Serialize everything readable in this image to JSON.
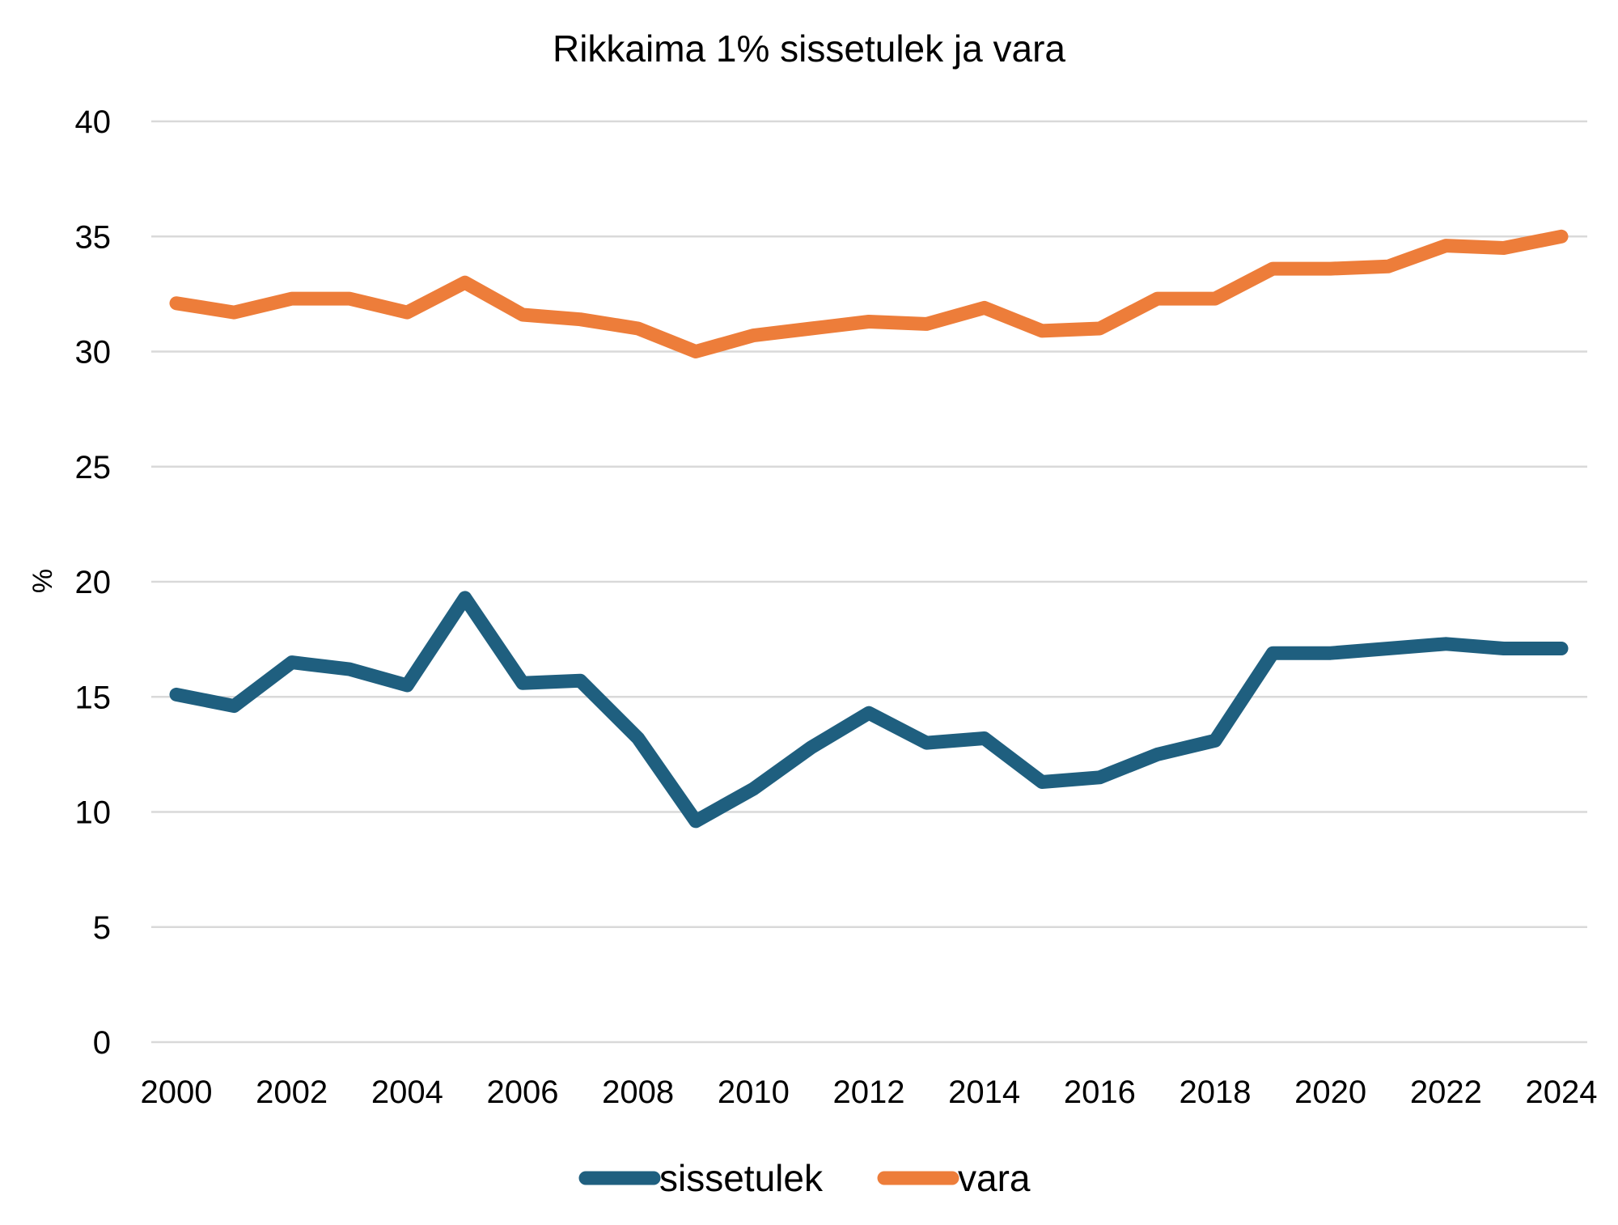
{
  "chart_data": {
    "type": "line",
    "title": "Rikkaima 1% sissetulek ja vara",
    "ylabel": "%",
    "xlabel": "",
    "ylim": [
      0,
      40
    ],
    "yticks": [
      0,
      5,
      10,
      15,
      20,
      25,
      30,
      35,
      40
    ],
    "xticks": [
      2000,
      2002,
      2004,
      2006,
      2008,
      2010,
      2012,
      2014,
      2016,
      2018,
      2020,
      2022,
      2024
    ],
    "x": [
      2000,
      2001,
      2002,
      2003,
      2004,
      2005,
      2006,
      2007,
      2008,
      2009,
      2010,
      2011,
      2012,
      2013,
      2014,
      2015,
      2016,
      2017,
      2018,
      2019,
      2020,
      2021,
      2022,
      2023,
      2024
    ],
    "grid": true,
    "legend_position": "bottom",
    "series": [
      {
        "name": "sissetulek",
        "color": "#1f5f7f",
        "values": [
          15.1,
          14.6,
          16.5,
          16.2,
          15.5,
          19.3,
          15.6,
          15.7,
          13.2,
          9.6,
          11.0,
          12.8,
          14.3,
          13.0,
          13.2,
          11.3,
          11.5,
          12.5,
          13.1,
          16.9,
          16.9,
          17.1,
          17.3,
          17.1,
          17.1
        ]
      },
      {
        "name": "vara",
        "color": "#ed7d3a",
        "values": [
          32.1,
          31.7,
          32.3,
          32.3,
          31.7,
          33.0,
          31.6,
          31.4,
          31.0,
          30.0,
          30.7,
          31.0,
          31.3,
          31.2,
          31.9,
          30.9,
          31.0,
          32.3,
          32.3,
          33.6,
          33.6,
          33.7,
          34.6,
          34.5,
          35.0
        ]
      }
    ]
  }
}
